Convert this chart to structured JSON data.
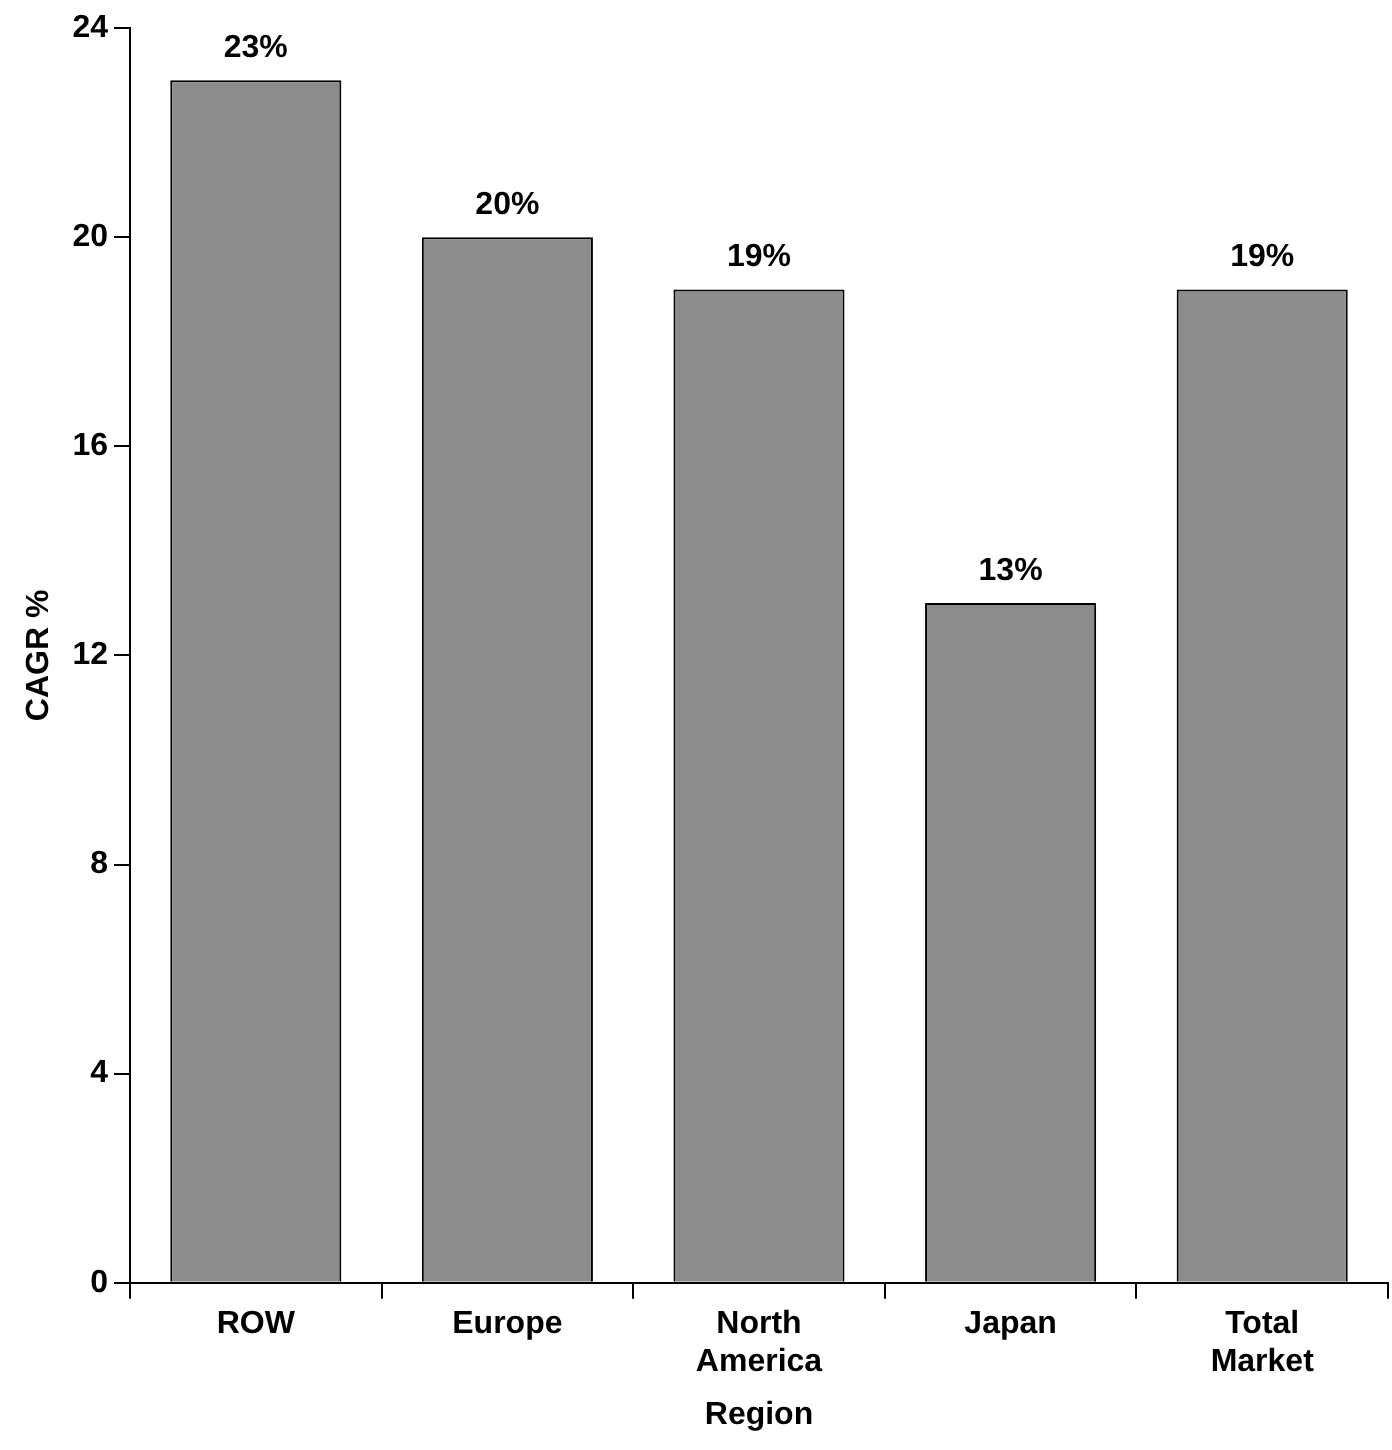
{
  "chart_data": {
    "type": "bar",
    "xlabel": "Region",
    "ylabel": "CAGR %",
    "categories": [
      "ROW",
      "Europe",
      "North America",
      "Japan",
      "Total Market"
    ],
    "values": [
      23,
      20,
      19,
      13,
      19
    ],
    "value_labels": [
      "23%",
      "20%",
      "19%",
      "13%",
      "19%"
    ],
    "color": "#8c8c8c",
    "ylim": [
      0,
      24
    ],
    "yticks": [
      0,
      4,
      8,
      12,
      16,
      20,
      24
    ],
    "grid": false,
    "legend": false
  }
}
